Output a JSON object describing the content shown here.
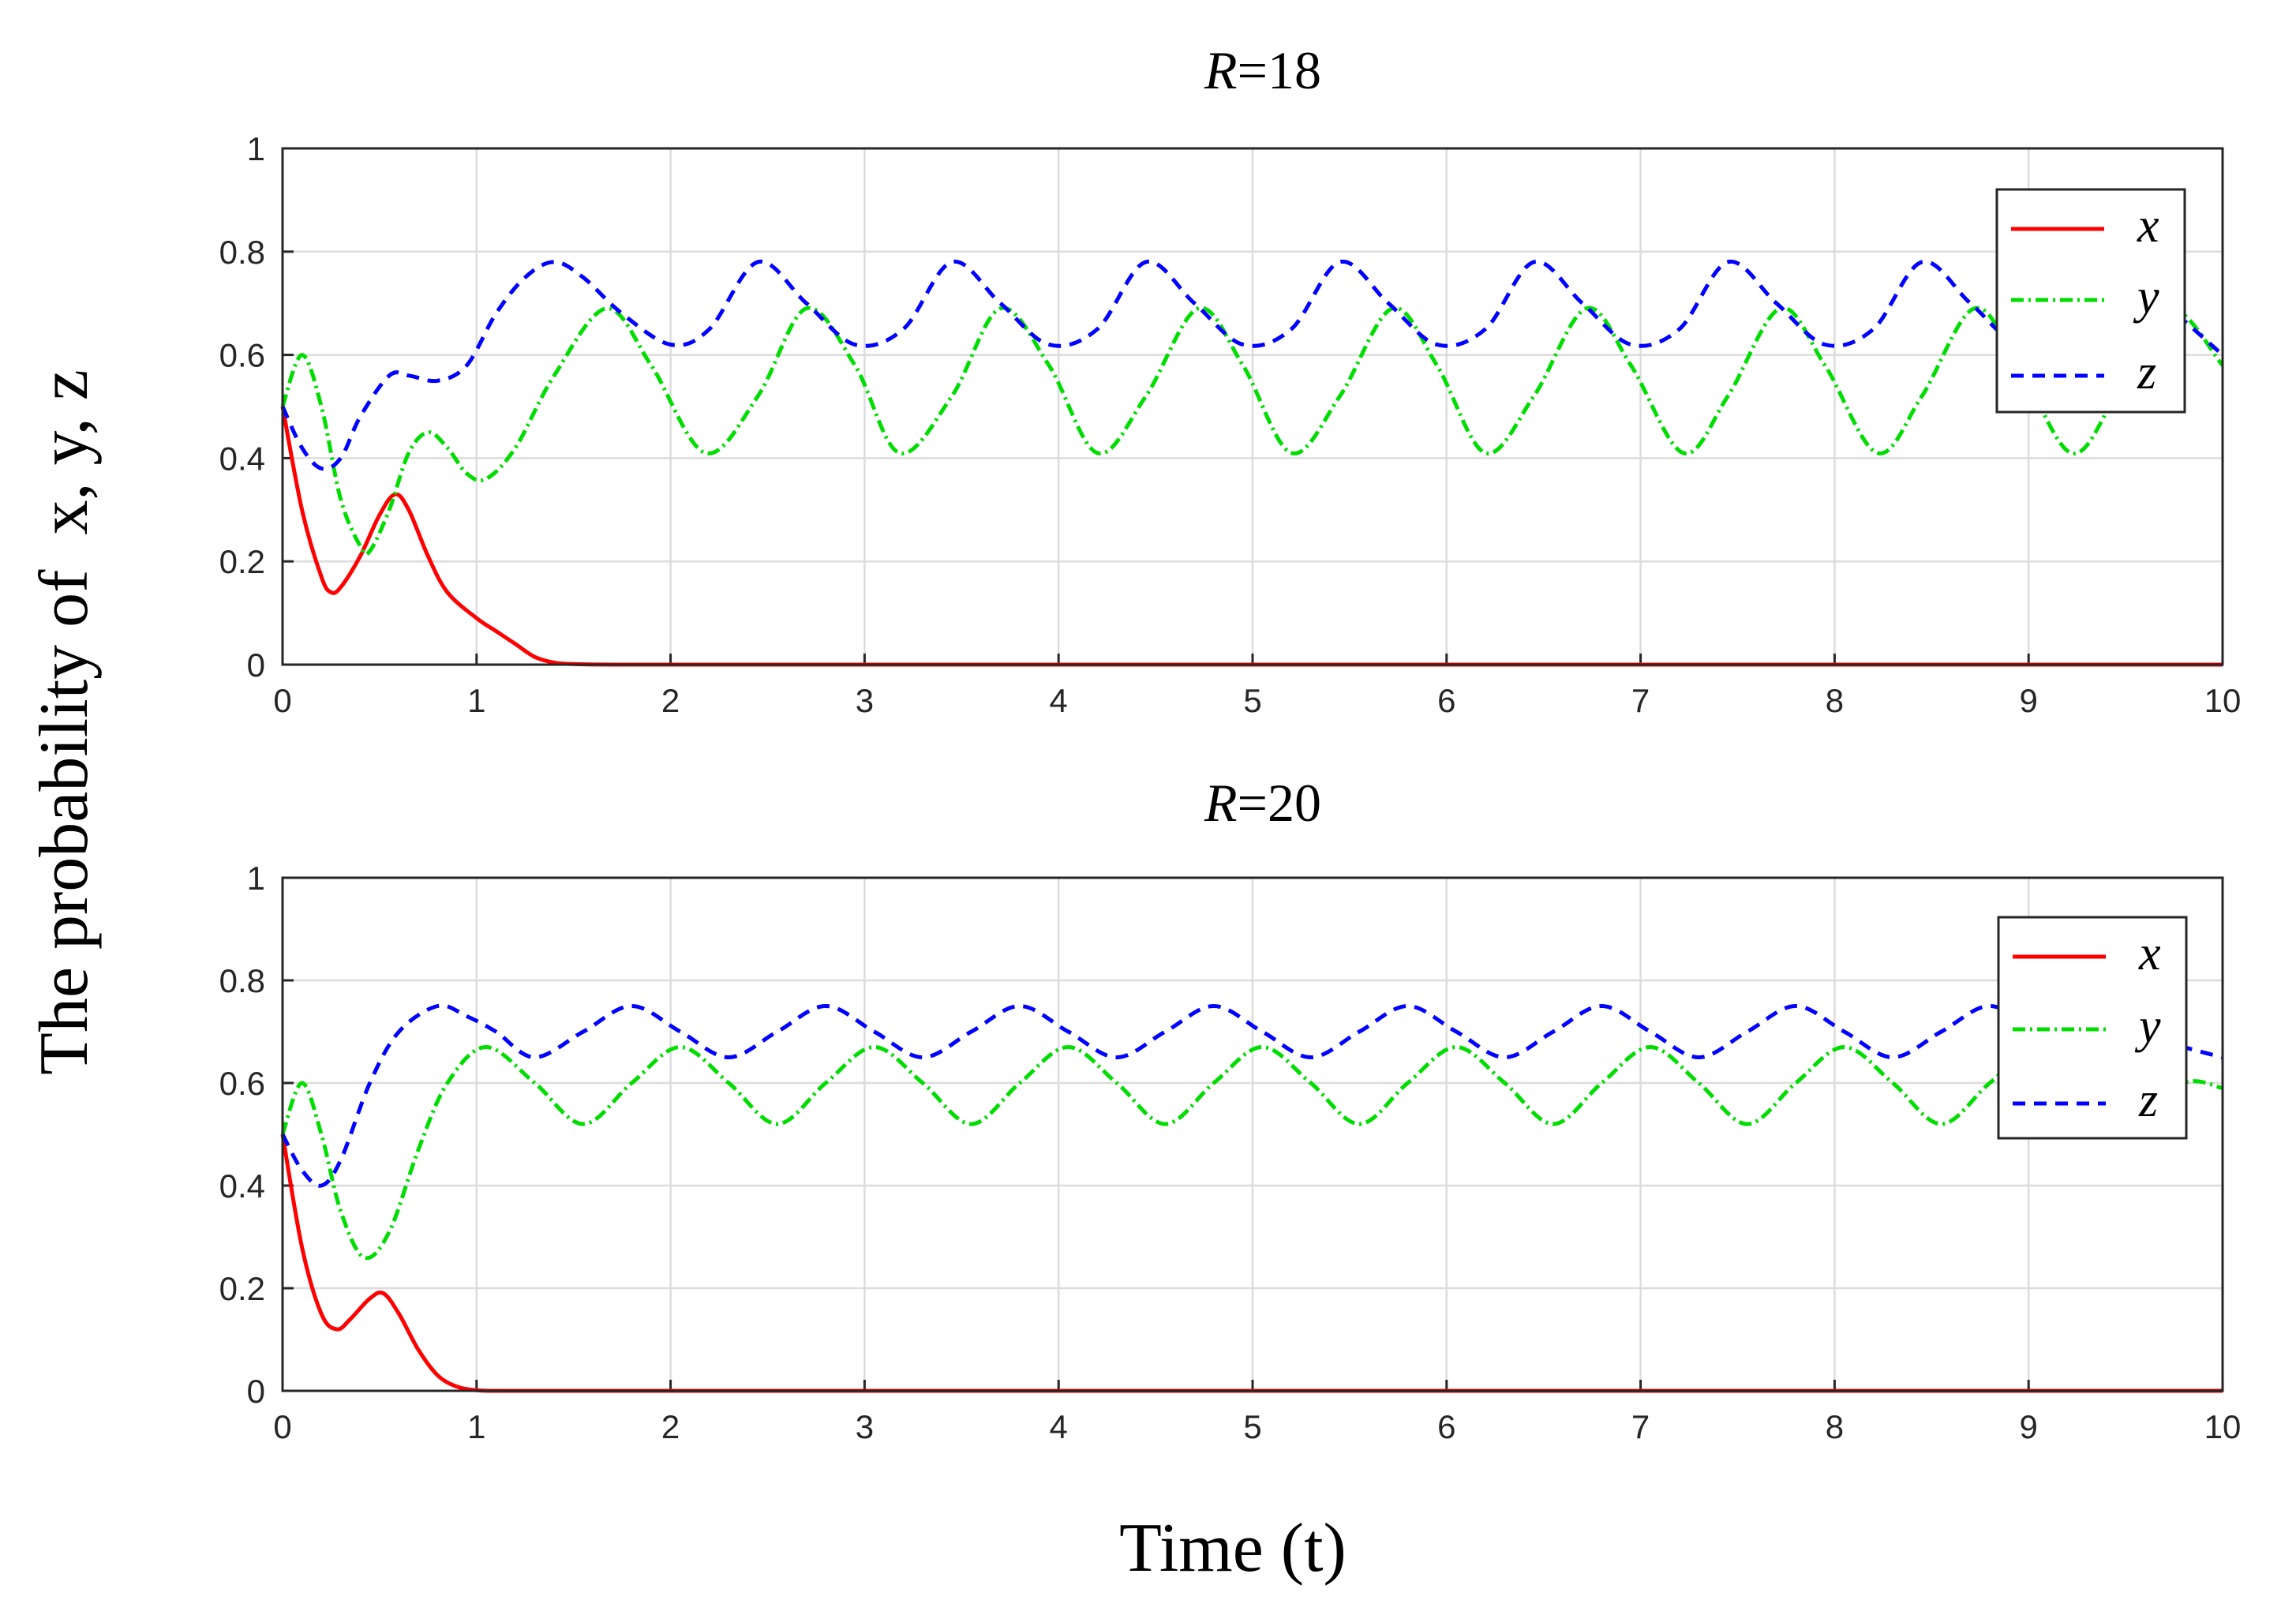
{
  "chart_data": [
    {
      "type": "line",
      "title_var": "R",
      "title_value": "=18",
      "xlabel": "Time (t)",
      "ylabel": "The probability of  x, y, z",
      "xlim": [
        0,
        10
      ],
      "ylim": [
        0,
        1
      ],
      "xticks": [
        "0",
        "1",
        "2",
        "3",
        "4",
        "5",
        "6",
        "7",
        "8",
        "9",
        "10"
      ],
      "yticks": [
        "0",
        "0.2",
        "0.4",
        "0.6",
        "0.8",
        "1"
      ],
      "grid": true,
      "legend_position": "top-right",
      "series": [
        {
          "name": "x",
          "style": "solid",
          "color": "#ff0000",
          "x": [
            0,
            0.1,
            0.2,
            0.25,
            0.3,
            0.4,
            0.5,
            0.58,
            0.65,
            0.75,
            0.85,
            1.0,
            1.1,
            1.2,
            1.3,
            1.4,
            1.5,
            1.7,
            2,
            4,
            6,
            8,
            10
          ],
          "y": [
            0.5,
            0.3,
            0.17,
            0.14,
            0.15,
            0.21,
            0.29,
            0.33,
            0.3,
            0.21,
            0.14,
            0.09,
            0.065,
            0.04,
            0.015,
            0.004,
            0.001,
            0,
            0,
            0,
            0,
            0,
            0
          ]
        },
        {
          "name": "y",
          "style": "dash-dot",
          "color": "#00dd00",
          "x": [
            0,
            0.1,
            0.2,
            0.3,
            0.4,
            0.45,
            0.55,
            0.65,
            0.75,
            0.85,
            0.95,
            1.05,
            1.2,
            1.4,
            1.67,
            1.9,
            2.18,
            2.45,
            2.7,
            2.95,
            3.18,
            3.45,
            3.7,
            3.95,
            4.2,
            4.45,
            4.72,
            4.95,
            5.2,
            5.45,
            5.72,
            5.95,
            6.2,
            6.45,
            6.72,
            6.95,
            7.22,
            7.45,
            7.72,
            7.95,
            8.22,
            8.45,
            8.72,
            8.95,
            9.22,
            9.45,
            9.72,
            10
          ],
          "y": [
            0.5,
            0.6,
            0.5,
            0.32,
            0.23,
            0.22,
            0.3,
            0.41,
            0.45,
            0.42,
            0.37,
            0.36,
            0.42,
            0.56,
            0.69,
            0.58,
            0.41,
            0.52,
            0.69,
            0.58,
            0.41,
            0.52,
            0.69,
            0.58,
            0.41,
            0.52,
            0.69,
            0.58,
            0.41,
            0.52,
            0.69,
            0.58,
            0.41,
            0.52,
            0.69,
            0.58,
            0.41,
            0.52,
            0.69,
            0.58,
            0.41,
            0.52,
            0.69,
            0.58,
            0.41,
            0.52,
            0.69,
            0.58
          ]
        },
        {
          "name": "z",
          "style": "dashed",
          "color": "#0000ff",
          "x": [
            0,
            0.1,
            0.2,
            0.3,
            0.4,
            0.55,
            0.65,
            0.8,
            0.95,
            1.1,
            1.25,
            1.4,
            1.55,
            1.75,
            2.0,
            2.2,
            2.45,
            2.7,
            2.95,
            3.2,
            3.45,
            3.7,
            3.95,
            4.2,
            4.45,
            4.7,
            4.95,
            5.2,
            5.45,
            5.7,
            5.95,
            6.2,
            6.45,
            6.7,
            6.95,
            7.2,
            7.45,
            7.7,
            7.95,
            8.2,
            8.45,
            8.7,
            8.95,
            9.2,
            9.45,
            9.7,
            10
          ],
          "y": [
            0.5,
            0.42,
            0.38,
            0.4,
            0.48,
            0.56,
            0.56,
            0.55,
            0.58,
            0.68,
            0.75,
            0.78,
            0.75,
            0.68,
            0.62,
            0.65,
            0.78,
            0.7,
            0.62,
            0.65,
            0.78,
            0.7,
            0.62,
            0.65,
            0.78,
            0.7,
            0.62,
            0.65,
            0.78,
            0.7,
            0.62,
            0.65,
            0.78,
            0.7,
            0.62,
            0.65,
            0.78,
            0.7,
            0.62,
            0.65,
            0.78,
            0.7,
            0.62,
            0.65,
            0.78,
            0.7,
            0.6
          ]
        }
      ]
    },
    {
      "type": "line",
      "title_var": "R",
      "title_value": "=20",
      "xlabel": "Time (t)",
      "ylabel": "The probability of  x, y, z",
      "xlim": [
        0,
        10
      ],
      "ylim": [
        0,
        1
      ],
      "xticks": [
        "0",
        "1",
        "2",
        "3",
        "4",
        "5",
        "6",
        "7",
        "8",
        "9",
        "10"
      ],
      "yticks": [
        "0",
        "0.2",
        "0.4",
        "0.6",
        "0.8",
        "1"
      ],
      "grid": true,
      "legend_position": "top-right",
      "series": [
        {
          "name": "x",
          "style": "solid",
          "color": "#ff0000",
          "x": [
            0,
            0.1,
            0.2,
            0.28,
            0.35,
            0.45,
            0.52,
            0.6,
            0.7,
            0.8,
            0.9,
            1.0,
            1.1,
            1.3,
            2,
            4,
            6,
            8,
            10
          ],
          "y": [
            0.5,
            0.28,
            0.15,
            0.12,
            0.14,
            0.18,
            0.19,
            0.15,
            0.08,
            0.03,
            0.008,
            0.001,
            0,
            0,
            0,
            0,
            0,
            0,
            0
          ]
        },
        {
          "name": "y",
          "style": "dash-dot",
          "color": "#00dd00",
          "x": [
            0,
            0.1,
            0.2,
            0.3,
            0.42,
            0.55,
            0.7,
            0.85,
            1.05,
            1.3,
            1.55,
            1.8,
            2.05,
            2.3,
            2.55,
            2.8,
            3.05,
            3.3,
            3.55,
            3.8,
            4.05,
            4.3,
            4.55,
            4.8,
            5.05,
            5.3,
            5.55,
            5.8,
            6.05,
            6.3,
            6.55,
            6.8,
            7.05,
            7.3,
            7.55,
            7.8,
            8.05,
            8.3,
            8.55,
            8.8,
            9.05,
            9.3,
            9.55,
            9.8,
            10
          ],
          "y": [
            0.5,
            0.6,
            0.5,
            0.35,
            0.26,
            0.31,
            0.47,
            0.6,
            0.67,
            0.6,
            0.52,
            0.6,
            0.67,
            0.6,
            0.52,
            0.6,
            0.67,
            0.6,
            0.52,
            0.6,
            0.67,
            0.6,
            0.52,
            0.6,
            0.67,
            0.6,
            0.52,
            0.6,
            0.67,
            0.6,
            0.52,
            0.6,
            0.67,
            0.6,
            0.52,
            0.6,
            0.67,
            0.6,
            0.52,
            0.6,
            0.67,
            0.6,
            0.52,
            0.6,
            0.59
          ]
        },
        {
          "name": "z",
          "style": "dashed",
          "color": "#0000ff",
          "x": [
            0,
            0.1,
            0.2,
            0.3,
            0.45,
            0.6,
            0.8,
            0.95,
            1.1,
            1.3,
            1.55,
            1.8,
            2.05,
            2.3,
            2.55,
            2.8,
            3.05,
            3.3,
            3.55,
            3.8,
            4.05,
            4.3,
            4.55,
            4.8,
            5.05,
            5.3,
            5.55,
            5.8,
            6.05,
            6.3,
            6.55,
            6.8,
            7.05,
            7.3,
            7.55,
            7.8,
            8.05,
            8.3,
            8.55,
            8.8,
            9.05,
            9.3,
            9.55,
            9.8,
            10
          ],
          "y": [
            0.5,
            0.43,
            0.4,
            0.45,
            0.6,
            0.7,
            0.75,
            0.73,
            0.7,
            0.65,
            0.7,
            0.75,
            0.7,
            0.65,
            0.7,
            0.75,
            0.7,
            0.65,
            0.7,
            0.75,
            0.7,
            0.65,
            0.7,
            0.75,
            0.7,
            0.65,
            0.7,
            0.75,
            0.7,
            0.65,
            0.7,
            0.75,
            0.7,
            0.65,
            0.7,
            0.75,
            0.7,
            0.65,
            0.7,
            0.75,
            0.7,
            0.65,
            0.7,
            0.67,
            0.65
          ]
        }
      ]
    }
  ]
}
